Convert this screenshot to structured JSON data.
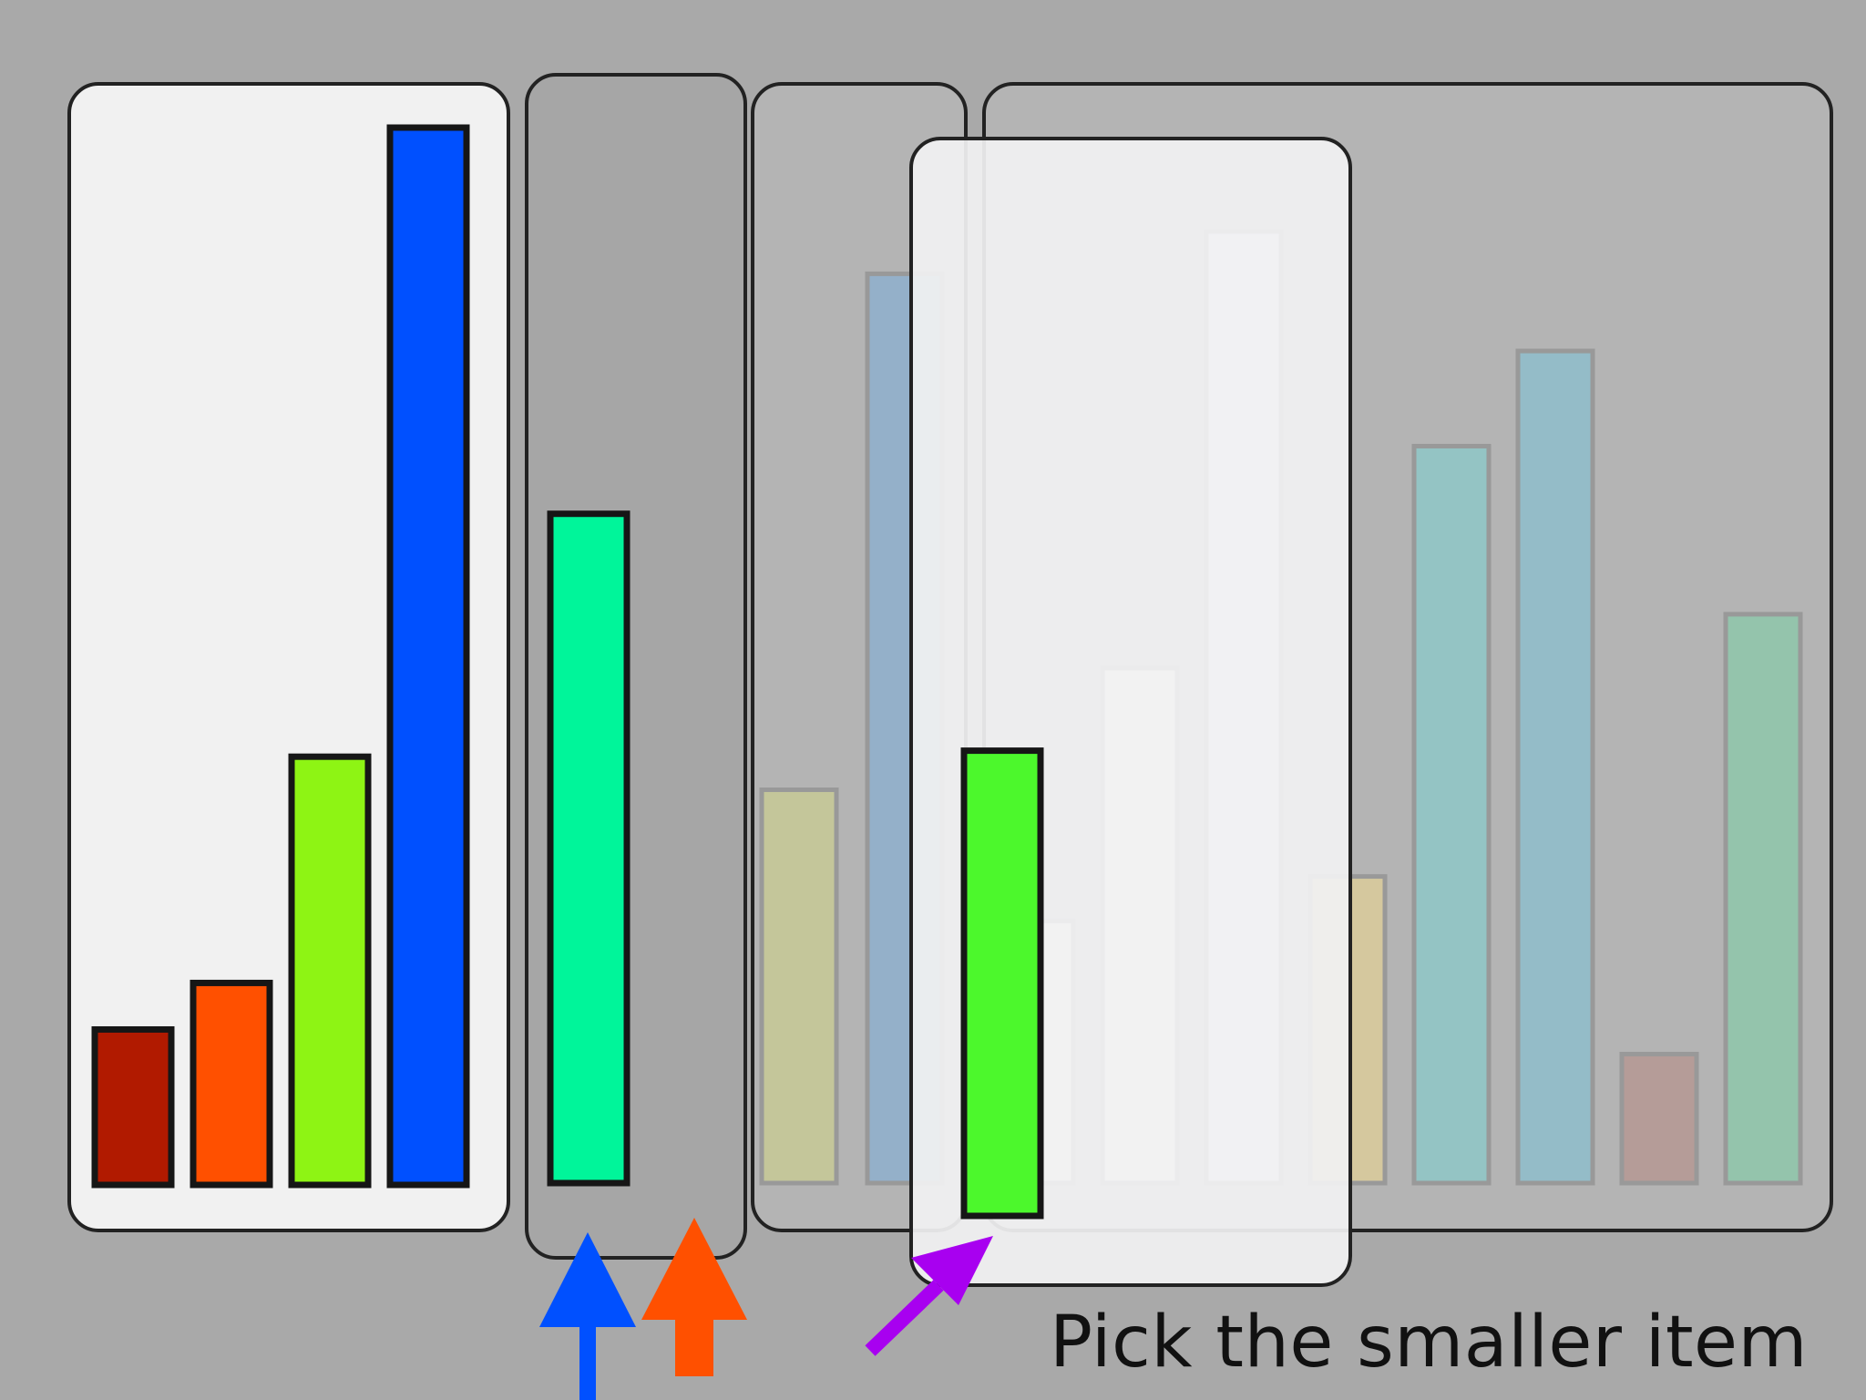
{
  "background_color": "#a9a9a9",
  "caption": "Pick the smaller item",
  "panels": [
    {
      "name": "sorted-panel",
      "fill": "#f1f1f1",
      "opacity": 1,
      "bars": [
        {
          "value": 0.147,
          "color": "#b11a00"
        },
        {
          "value": 0.191,
          "color": "#ff5000"
        },
        {
          "value": 0.405,
          "color": "#8ef414"
        },
        {
          "value": 1.0,
          "color": "#0050ff"
        }
      ]
    },
    {
      "name": "current-item-panel",
      "fill": "#a6a6a6",
      "opacity": 1,
      "bars": [
        {
          "value": 0.633,
          "color": "#00f59a"
        }
      ]
    },
    {
      "name": "pile-a-panel",
      "fill": "#b4b4b4",
      "opacity": 1,
      "bars": [
        {
          "value": 0.372,
          "color": "#c4c69a",
          "faded": true
        },
        {
          "value": 0.86,
          "color": "#94b0c9",
          "faded": true
        }
      ]
    },
    {
      "name": "pile-b-panel",
      "fill": "#b4b4b4",
      "opacity": 1,
      "bars": [
        {
          "value": 0.248,
          "color": "#f5f3ea",
          "faded": true
        },
        {
          "value": 0.487,
          "color": "#f3f4f1",
          "faded": true
        },
        {
          "value": 0.9,
          "color": "#eef1f4",
          "faded": true
        },
        {
          "value": 0.29,
          "color": "#d5c89e",
          "faded": true
        },
        {
          "value": 0.697,
          "color": "#94c4c4",
          "faded": true
        },
        {
          "value": 0.787,
          "color": "#94bcc8",
          "faded": true
        },
        {
          "value": 0.122,
          "color": "#b59c98",
          "faded": true
        },
        {
          "value": 0.538,
          "color": "#94c4ac",
          "faded": true
        }
      ]
    },
    {
      "name": "compare-panel",
      "fill": "#f1f1f2",
      "opacity": 0.93,
      "bars": [
        {
          "value": 0.44,
          "color": "#4cf82c"
        }
      ]
    }
  ],
  "arrows": [
    {
      "name": "blue-arrow",
      "color": "#0050ff",
      "direction": "up"
    },
    {
      "name": "orange-arrow",
      "color": "#ff5000",
      "direction": "up"
    },
    {
      "name": "purple-arrow",
      "color": "#a800f0",
      "direction": "up-right"
    }
  ]
}
